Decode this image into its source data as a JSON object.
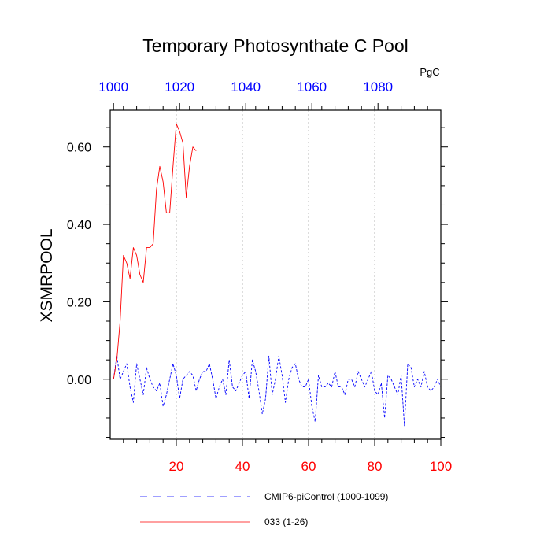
{
  "chart_data": {
    "type": "line",
    "title": "Temporary Photosynthate C Pool",
    "units": "PgC",
    "ylabel": "XSMRPOOL",
    "xlabel": "",
    "ylim": [
      -0.155,
      0.695
    ],
    "xlim_bottom": [
      0,
      100
    ],
    "xlim_top": [
      999,
      1099
    ],
    "yticks": [
      {
        "value": 0.0,
        "label": "0.00"
      },
      {
        "value": 0.2,
        "label": "0.20"
      },
      {
        "value": 0.4,
        "label": "0.40"
      },
      {
        "value": 0.6,
        "label": "0.60"
      }
    ],
    "bottom_ticks": [
      {
        "value": 20,
        "label": "20"
      },
      {
        "value": 40,
        "label": "40"
      },
      {
        "value": 60,
        "label": "60"
      },
      {
        "value": 80,
        "label": "80"
      },
      {
        "value": 100,
        "label": "100"
      }
    ],
    "top_ticks": [
      {
        "value": 1000,
        "label": "1000"
      },
      {
        "value": 1020,
        "label": "1020"
      },
      {
        "value": 1040,
        "label": "1040"
      },
      {
        "value": 1060,
        "label": "1060"
      },
      {
        "value": 1080,
        "label": "1080"
      }
    ],
    "vertical_gridlines": [
      20,
      40,
      60,
      80
    ],
    "series": [
      {
        "name": "CMIP6-piControl (1000-1099)",
        "color": "#0000ff",
        "dash": "dashed",
        "axis": "top",
        "x": [
          1000,
          1001,
          1002,
          1003,
          1004,
          1005,
          1006,
          1007,
          1008,
          1009,
          1010,
          1011,
          1012,
          1013,
          1014,
          1015,
          1016,
          1017,
          1018,
          1019,
          1020,
          1021,
          1022,
          1023,
          1024,
          1025,
          1026,
          1027,
          1028,
          1029,
          1030,
          1031,
          1032,
          1033,
          1034,
          1035,
          1036,
          1037,
          1038,
          1039,
          1040,
          1041,
          1042,
          1043,
          1044,
          1045,
          1046,
          1047,
          1048,
          1049,
          1050,
          1051,
          1052,
          1053,
          1054,
          1055,
          1056,
          1057,
          1058,
          1059,
          1060,
          1061,
          1062,
          1063,
          1064,
          1065,
          1066,
          1067,
          1068,
          1069,
          1070,
          1071,
          1072,
          1073,
          1074,
          1075,
          1076,
          1077,
          1078,
          1079,
          1080,
          1081,
          1082,
          1083,
          1084,
          1085,
          1086,
          1087,
          1088,
          1089,
          1090,
          1091,
          1092,
          1093,
          1094,
          1095,
          1096,
          1097,
          1098,
          1099
        ],
        "values": [
          0.0,
          0.06,
          0.0,
          0.02,
          0.04,
          -0.02,
          -0.06,
          0.04,
          0.0,
          -0.04,
          0.03,
          0.0,
          -0.02,
          -0.03,
          -0.01,
          -0.07,
          -0.04,
          0.0,
          0.04,
          0.01,
          -0.05,
          0.0,
          0.01,
          0.02,
          0.01,
          -0.03,
          0.0,
          0.02,
          0.02,
          0.04,
          0.0,
          -0.05,
          -0.02,
          0.0,
          -0.04,
          0.05,
          -0.02,
          -0.03,
          -0.01,
          0.01,
          0.02,
          -0.05,
          0.05,
          0.02,
          -0.03,
          -0.09,
          -0.05,
          0.06,
          -0.04,
          0.0,
          0.06,
          0.01,
          -0.06,
          0.0,
          0.03,
          0.04,
          0.0,
          -0.02,
          -0.02,
          0.0,
          -0.07,
          -0.11,
          0.01,
          -0.02,
          -0.02,
          -0.01,
          -0.02,
          0.02,
          -0.02,
          -0.02,
          -0.04,
          0.0,
          0.0,
          -0.02,
          0.02,
          0.0,
          -0.02,
          0.0,
          0.02,
          -0.03,
          -0.04,
          -0.01,
          -0.1,
          0.01,
          0.0,
          -0.02,
          -0.04,
          0.01,
          -0.12,
          0.04,
          0.03,
          -0.02,
          0.0,
          -0.02,
          0.02,
          -0.02,
          -0.03,
          -0.02,
          0.0,
          -0.02
        ]
      },
      {
        "name": "033 (1-26)",
        "color": "#ff0000",
        "dash": "solid",
        "axis": "bottom",
        "x": [
          1,
          2,
          3,
          4,
          5,
          6,
          7,
          8,
          9,
          10,
          11,
          12,
          13,
          14,
          15,
          16,
          17,
          18,
          19,
          20,
          21,
          22,
          23,
          24,
          25,
          26
        ],
        "values": [
          0.0,
          0.05,
          0.15,
          0.32,
          0.3,
          0.26,
          0.34,
          0.32,
          0.27,
          0.25,
          0.34,
          0.34,
          0.35,
          0.49,
          0.55,
          0.51,
          0.43,
          0.43,
          0.55,
          0.66,
          0.64,
          0.61,
          0.47,
          0.55,
          0.6,
          0.59
        ]
      }
    ],
    "legend": {
      "position": "bottom",
      "entries": [
        {
          "label": "CMIP6-piControl (1000-1099)",
          "color": "#0000ff",
          "dash": "dashed"
        },
        {
          "label": "033 (1-26)",
          "color": "#ff0000",
          "dash": "solid"
        }
      ]
    },
    "colors": {
      "top_axis": "#0000ff",
      "bottom_axis": "#ff0000",
      "frame": "#000000",
      "grid": "#aaaaaa"
    }
  }
}
